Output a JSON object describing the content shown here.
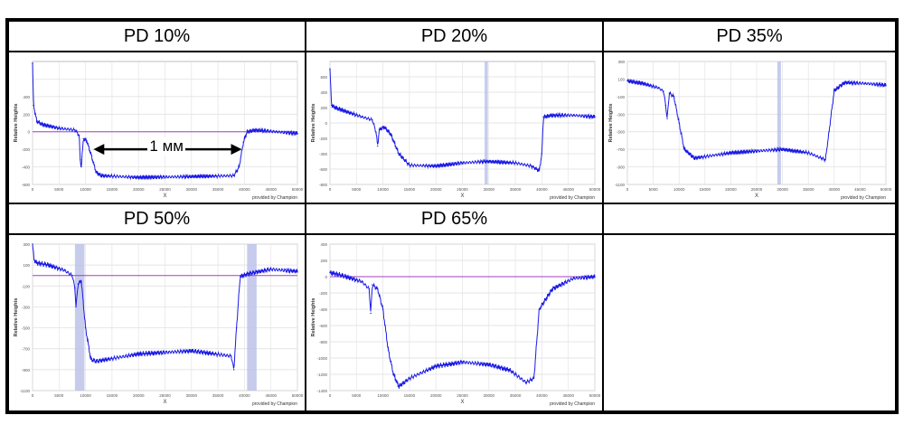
{
  "panels": [
    {
      "title": "PD 10%",
      "chart_data": {
        "type": "line",
        "title": "PD 10%",
        "xlabel": "X",
        "ylabel": "Relative Heights",
        "xlim": [
          0,
          50000
        ],
        "ylim": [
          -600,
          800
        ],
        "xticks": [
          0,
          5000,
          10000,
          15000,
          20000,
          25000,
          30000,
          35000,
          40000,
          45000,
          50000
        ],
        "yticks": [
          -600,
          -400,
          -200,
          0,
          200,
          400,
          600
        ],
        "ytick_labels": [
          "-600",
          "-400",
          "-200",
          "0",
          "200",
          "400",
          ""
        ],
        "reference_line": 0,
        "highlight_bands": [],
        "series": [
          {
            "name": "profile",
            "x": [
              0,
              200,
              800,
              2000,
              5000,
              8000,
              8800,
              9000,
              9200,
              9600,
              10200,
              11000,
              12000,
              13000,
              20000,
              30000,
              38000,
              39000,
              39800,
              40500,
              42000,
              46000,
              50000
            ],
            "y": [
              780,
              300,
              120,
              80,
              40,
              20,
              -40,
              -320,
              -400,
              -80,
              -100,
              -250,
              -460,
              -500,
              -520,
              -510,
              -500,
              -400,
              -120,
              0,
              20,
              0,
              -20
            ]
          }
        ],
        "annotation": {
          "text": "1 мм",
          "x_start": 12000,
          "x_end": 39000,
          "y": -200
        },
        "credit": "provided by Champion"
      }
    },
    {
      "title": "PD 20%",
      "chart_data": {
        "type": "line",
        "title": "PD 20%",
        "xlabel": "X",
        "ylabel": "Relative Heights",
        "xlim": [
          0,
          50000
        ],
        "ylim": [
          -800,
          800
        ],
        "xticks": [
          0,
          5000,
          10000,
          15000,
          20000,
          25000,
          30000,
          35000,
          40000,
          45000,
          50000
        ],
        "yticks": [
          -800,
          -600,
          -400,
          -200,
          0,
          200,
          400,
          600
        ],
        "ytick_labels": [
          "-800",
          "-600",
          "-400",
          "-200",
          "0",
          "200",
          "400",
          "600"
        ],
        "reference_line": null,
        "highlight_bands": [
          [
            29200,
            29800
          ]
        ],
        "series": [
          {
            "name": "profile",
            "x": [
              0,
              300,
              1000,
              3000,
              6000,
              8000,
              8700,
              9000,
              9300,
              10200,
              11500,
              13000,
              15000,
              20000,
              25000,
              29500,
              35000,
              38000,
              39500,
              40000,
              40300,
              42000,
              46000,
              50000
            ],
            "y": [
              700,
              230,
              200,
              150,
              80,
              40,
              -120,
              -300,
              -90,
              -50,
              -150,
              -400,
              -550,
              -560,
              -520,
              -500,
              -520,
              -560,
              -620,
              -400,
              80,
              100,
              100,
              80
            ]
          }
        ],
        "annotation": null,
        "credit": "provided by Champion"
      }
    },
    {
      "title": "PD 35%",
      "chart_data": {
        "type": "line",
        "title": "PD 35%",
        "xlabel": "X",
        "ylabel": "Relative Heights",
        "xlim": [
          0,
          50000
        ],
        "ylim": [
          -1100,
          300
        ],
        "xticks": [
          0,
          5000,
          10000,
          15000,
          20000,
          25000,
          30000,
          35000,
          40000,
          45000,
          50000
        ],
        "yticks": [
          -1100,
          -900,
          -700,
          -500,
          -300,
          -100,
          100,
          300
        ],
        "ytick_labels": [
          "-1100",
          "-900",
          "-700",
          "-500",
          "-300",
          "-100",
          "100",
          "300"
        ],
        "reference_line": null,
        "highlight_bands": [
          [
            29000,
            29700
          ]
        ],
        "series": [
          {
            "name": "profile",
            "x": [
              0,
              3000,
              6000,
              7000,
              7400,
              7700,
              8100,
              9000,
              10000,
              11000,
              13000,
              20000,
              25000,
              30000,
              35000,
              37500,
              38300,
              39000,
              40000,
              42000,
              46000,
              50000
            ],
            "y": [
              80,
              50,
              0,
              -40,
              -200,
              -350,
              -60,
              -100,
              -400,
              -700,
              -800,
              -740,
              -720,
              -700,
              -740,
              -800,
              -820,
              -500,
              -30,
              60,
              50,
              30
            ]
          }
        ],
        "annotation": null,
        "credit": "provided by Champion"
      }
    },
    {
      "title": "PD 50%",
      "chart_data": {
        "type": "line",
        "title": "PD 50%",
        "xlabel": "X",
        "ylabel": "Relative Heights",
        "xlim": [
          0,
          50000
        ],
        "ylim": [
          -1100,
          300
        ],
        "xticks": [
          0,
          5000,
          10000,
          15000,
          20000,
          25000,
          30000,
          35000,
          40000,
          45000,
          50000
        ],
        "yticks": [
          -1100,
          -900,
          -700,
          -500,
          -300,
          -100,
          100,
          300
        ],
        "ytick_labels": [
          "-1100",
          "-900",
          "-700",
          "-500",
          "-300",
          "-100",
          "100",
          "300"
        ],
        "reference_line": 0,
        "highlight_bands": [
          [
            8000,
            9800
          ],
          [
            40500,
            42300
          ]
        ],
        "series": [
          {
            "name": "profile",
            "x": [
              0,
              300,
              800,
              3000,
              6000,
              7500,
              8000,
              8200,
              8600,
              9200,
              10000,
              11000,
              12000,
              20000,
              30000,
              37500,
              38000,
              38500,
              39200,
              41000,
              45000,
              50000
            ],
            "y": [
              300,
              150,
              120,
              100,
              50,
              0,
              -120,
              -300,
              -80,
              -50,
              -500,
              -800,
              -820,
              -750,
              -720,
              -770,
              -900,
              -500,
              -10,
              20,
              60,
              40
            ]
          }
        ],
        "annotation": null,
        "credit": "provided by Champion"
      }
    },
    {
      "title": "PD 65%",
      "chart_data": {
        "type": "line",
        "title": "PD 65%",
        "xlabel": "X",
        "ylabel": "Relative Heights",
        "xlim": [
          0,
          50000
        ],
        "ylim": [
          -1400,
          400
        ],
        "xticks": [
          0,
          5000,
          10000,
          15000,
          20000,
          25000,
          30000,
          35000,
          40000,
          45000,
          50000
        ],
        "yticks": [
          -1400,
          -1200,
          -1000,
          -800,
          -600,
          -400,
          -200,
          0,
          200,
          400
        ],
        "ytick_labels": [
          "-1400",
          "-1200",
          "-1000",
          "-800",
          "-600",
          "-400",
          "-200",
          "0",
          "200",
          "400"
        ],
        "reference_line": 0,
        "highlight_bands": [],
        "series": [
          {
            "name": "profile",
            "x": [
              0,
              2000,
              6000,
              7400,
              7700,
              8000,
              9000,
              10000,
              11000,
              12000,
              13000,
              15000,
              20000,
              25000,
              30000,
              34000,
              37000,
              38500,
              39500,
              42000,
              46000,
              50000
            ],
            "y": [
              50,
              20,
              -60,
              -150,
              -450,
              -100,
              -150,
              -400,
              -900,
              -1200,
              -1350,
              -1250,
              -1100,
              -1050,
              -1080,
              -1150,
              -1300,
              -1250,
              -400,
              -150,
              -20,
              0
            ]
          }
        ],
        "annotation": null,
        "credit": "provided by Champion"
      }
    }
  ]
}
